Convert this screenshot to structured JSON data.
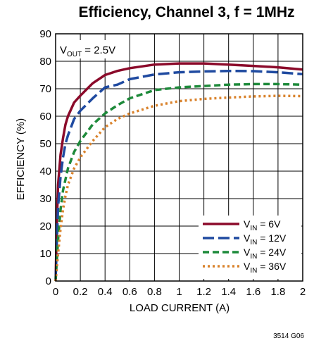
{
  "chart_data": {
    "type": "line",
    "title": "Efficiency, Channel 3, f = 1MHz",
    "xlabel": "LOAD CURRENT (A)",
    "ylabel": "EFFICIENCY (%)",
    "xlim": [
      0,
      2
    ],
    "ylim": [
      0,
      90
    ],
    "xticks": [
      "0",
      "0.2",
      "0.4",
      "0.6",
      "0.8",
      "1",
      "1.2",
      "1.4",
      "1.6",
      "1.8",
      "2"
    ],
    "yticks": [
      "0",
      "10",
      "20",
      "30",
      "40",
      "50",
      "60",
      "70",
      "80",
      "90"
    ],
    "grid": true,
    "annotation": {
      "prefix": "V",
      "sub": "OUT",
      "suffix": " = 2.5V"
    },
    "legend_position": "bottom-right",
    "figure_code": "3514 G06",
    "series": [
      {
        "name_prefix": "V",
        "name_sub": "IN",
        "name_suffix": " = 6V",
        "color": "#8b0a2a",
        "dash": "solid",
        "x": [
          0,
          0.01,
          0.02,
          0.04,
          0.06,
          0.08,
          0.1,
          0.15,
          0.2,
          0.3,
          0.4,
          0.5,
          0.6,
          0.8,
          1.0,
          1.2,
          1.4,
          1.6,
          1.8,
          2.0
        ],
        "y": [
          0,
          22,
          35,
          46,
          52,
          57,
          60,
          65,
          67.5,
          72,
          75,
          76.5,
          77.5,
          78.8,
          79.2,
          79.2,
          78.8,
          78.3,
          77.8,
          77
        ]
      },
      {
        "name_prefix": "V",
        "name_sub": "IN",
        "name_suffix": " = 12V",
        "color": "#1f4aa0",
        "dash": "longdash",
        "x": [
          0,
          0.01,
          0.02,
          0.04,
          0.06,
          0.08,
          0.1,
          0.15,
          0.2,
          0.3,
          0.4,
          0.5,
          0.6,
          0.8,
          1.0,
          1.2,
          1.4,
          1.6,
          1.8,
          2.0
        ],
        "y": [
          0,
          15,
          27,
          38,
          45,
          50,
          53,
          59,
          62,
          66.5,
          70.5,
          71.5,
          73.5,
          75.2,
          76,
          76.3,
          76.5,
          76.4,
          76,
          75.3
        ]
      },
      {
        "name_prefix": "V",
        "name_sub": "IN",
        "name_suffix": " = 24V",
        "color": "#1d8a3a",
        "dash": "dash",
        "x": [
          0,
          0.01,
          0.02,
          0.04,
          0.06,
          0.08,
          0.1,
          0.15,
          0.2,
          0.3,
          0.4,
          0.5,
          0.6,
          0.8,
          1.0,
          1.2,
          1.4,
          1.6,
          1.8,
          2.0
        ],
        "y": [
          0,
          8,
          15,
          26,
          33,
          37,
          41,
          47,
          51,
          57,
          61,
          64,
          66.5,
          69.5,
          70.5,
          71,
          71.5,
          71.7,
          71.7,
          71.5
        ]
      },
      {
        "name_prefix": "V",
        "name_sub": "IN",
        "name_suffix": " = 36V",
        "color": "#d9822b",
        "dash": "dot",
        "x": [
          0,
          0.01,
          0.02,
          0.04,
          0.06,
          0.08,
          0.1,
          0.15,
          0.2,
          0.3,
          0.4,
          0.5,
          0.6,
          0.8,
          1.0,
          1.2,
          1.4,
          1.6,
          1.8,
          2.0
        ],
        "y": [
          0,
          5,
          10,
          19,
          26,
          31,
          35,
          41,
          45,
          51,
          56,
          59,
          61,
          63.8,
          65.5,
          66.3,
          66.8,
          67.2,
          67.4,
          67.3
        ]
      }
    ]
  }
}
